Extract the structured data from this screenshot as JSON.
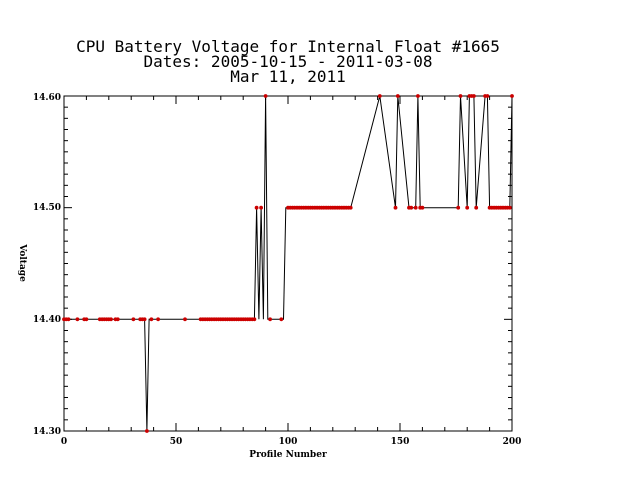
{
  "chart_data": {
    "type": "line",
    "title_lines": [
      "CPU Battery Voltage for Internal Float #1665",
      "Dates:  2005-10-15 -  2011-03-08",
      "Mar 11, 2011"
    ],
    "xlabel": "Profile Number",
    "ylabel": "Voltage",
    "xlim": [
      0,
      200
    ],
    "ylim": [
      14.3,
      14.6
    ],
    "x_ticks": [
      "0",
      "50",
      "100",
      "150",
      "200"
    ],
    "y_ticks": [
      "14.30",
      "14.40",
      "14.50",
      "14.60"
    ],
    "line_color": "#000000",
    "marker_color": "#cc0000",
    "grid": false,
    "series": [
      {
        "x": [
          0,
          1,
          2,
          3,
          4,
          5,
          6,
          7,
          8,
          9,
          10,
          11,
          12,
          13,
          14,
          15,
          16,
          17,
          18,
          19,
          20,
          21,
          22,
          23,
          24,
          25,
          26,
          27,
          28,
          29,
          30,
          31,
          32,
          33,
          34,
          35,
          36,
          37,
          38,
          39,
          40,
          41,
          42,
          43,
          44,
          45,
          46,
          47,
          48,
          49,
          50,
          51,
          52,
          53,
          54,
          55,
          56,
          57,
          58,
          59,
          60,
          61,
          62,
          63,
          64,
          65,
          66,
          67,
          68,
          69,
          70,
          71,
          72,
          73,
          74,
          75,
          76,
          77,
          78,
          79,
          80,
          81,
          82,
          83,
          84,
          85,
          86,
          87,
          88,
          89,
          90,
          91,
          92,
          93,
          94,
          95,
          96,
          97,
          98,
          99,
          100,
          101,
          102,
          103,
          104,
          105,
          106,
          107,
          108,
          109,
          110,
          111,
          112,
          113,
          114,
          115,
          116,
          117,
          118,
          119,
          120,
          121,
          122,
          123,
          124,
          125,
          126,
          127,
          128,
          141,
          148,
          149,
          154,
          155,
          157,
          158,
          159,
          160,
          176,
          177,
          180,
          181,
          182,
          183,
          184,
          188,
          189,
          190,
          191,
          192,
          193,
          194,
          195,
          196,
          197,
          198,
          199,
          200
        ],
        "y": [
          14.4,
          14.4,
          14.4,
          14.4,
          14.4,
          14.4,
          14.4,
          14.4,
          14.4,
          14.4,
          14.4,
          14.4,
          14.4,
          14.4,
          14.4,
          14.4,
          14.4,
          14.4,
          14.4,
          14.4,
          14.4,
          14.4,
          14.4,
          14.4,
          14.4,
          14.4,
          14.4,
          14.4,
          14.4,
          14.4,
          14.4,
          14.4,
          14.4,
          14.4,
          14.4,
          14.4,
          14.4,
          14.3,
          14.4,
          14.4,
          14.4,
          14.4,
          14.4,
          14.4,
          14.4,
          14.4,
          14.4,
          14.4,
          14.4,
          14.4,
          14.4,
          14.4,
          14.4,
          14.4,
          14.4,
          14.4,
          14.4,
          14.4,
          14.4,
          14.4,
          14.4,
          14.4,
          14.4,
          14.4,
          14.4,
          14.4,
          14.4,
          14.4,
          14.4,
          14.4,
          14.4,
          14.4,
          14.4,
          14.4,
          14.4,
          14.4,
          14.4,
          14.4,
          14.4,
          14.4,
          14.4,
          14.4,
          14.4,
          14.4,
          14.4,
          14.4,
          14.5,
          14.4,
          14.5,
          14.4,
          14.6,
          14.4,
          14.4,
          14.4,
          14.4,
          14.4,
          14.4,
          14.4,
          14.4,
          14.5,
          14.5,
          14.5,
          14.5,
          14.5,
          14.5,
          14.5,
          14.5,
          14.5,
          14.5,
          14.5,
          14.5,
          14.5,
          14.5,
          14.5,
          14.5,
          14.5,
          14.5,
          14.5,
          14.5,
          14.5,
          14.5,
          14.5,
          14.5,
          14.5,
          14.5,
          14.5,
          14.5,
          14.5,
          14.5,
          14.6,
          14.5,
          14.6,
          14.5,
          14.5,
          14.5,
          14.6,
          14.5,
          14.5,
          14.5,
          14.6,
          14.5,
          14.6,
          14.6,
          14.6,
          14.5,
          14.6,
          14.6,
          14.5,
          14.5,
          14.5,
          14.5,
          14.5,
          14.5,
          14.5,
          14.5,
          14.5,
          14.5,
          14.6
        ],
        "markers": [
          0,
          1,
          2,
          6,
          9,
          10,
          16,
          17,
          18,
          19,
          20,
          21,
          23,
          24,
          31,
          34,
          35,
          36,
          37,
          39,
          42,
          54,
          61,
          62,
          63,
          64,
          65,
          66,
          67,
          68,
          69,
          70,
          71,
          72,
          73,
          74,
          75,
          76,
          77,
          78,
          79,
          80,
          81,
          82,
          83,
          84,
          85,
          86,
          88,
          90,
          92,
          97,
          100,
          101,
          102,
          103,
          104,
          105,
          106,
          107,
          108,
          109,
          110,
          111,
          112,
          113,
          114,
          115,
          116,
          117,
          118,
          119,
          120,
          121,
          122,
          123,
          124,
          125,
          126,
          127,
          128,
          141,
          148,
          149,
          154,
          155,
          157,
          158,
          159,
          160,
          176,
          177,
          180,
          181,
          182,
          183,
          184,
          188,
          189,
          190,
          191,
          192,
          193,
          194,
          195,
          196,
          197,
          198,
          199,
          200
        ]
      }
    ]
  }
}
